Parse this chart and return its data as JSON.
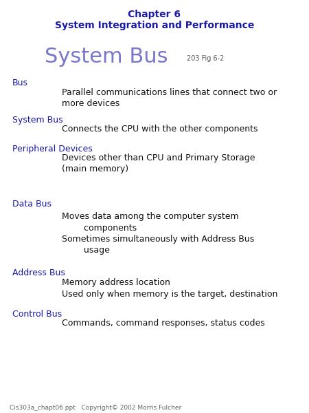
{
  "bg_color": "#ffffff",
  "header_line1": "Chapter 6",
  "header_line2": "System Integration and Performance",
  "header_color": "#1a1aaa",
  "title_main": "System Bus",
  "title_ref": "203 Fig 6-2",
  "title_color": "#7777cc",
  "title_ref_color": "#555555",
  "label_color": "#1a1aaa",
  "body_color": "#111111",
  "footer": "Cis303a_chapt06.ppt   Copyright© 2002 Morris Fulcher",
  "footer_color": "#666666",
  "items": [
    {
      "label": "Bus",
      "body": "Parallel communications lines that connect two or\nmore devices",
      "body_align": "left"
    },
    {
      "label": "System Bus",
      "body": "Connects the CPU with the other components",
      "body_align": "left"
    },
    {
      "label": "Peripheral Devices",
      "body": "Devices other than CPU and Primary Storage\n(main memory)",
      "body_align": "left"
    },
    {
      "label": "Data Bus",
      "body": "Moves data among the computer system\n        components\nSometimes simultaneously with Address Bus\n        usage",
      "body_align": "left"
    },
    {
      "label": "Address Bus",
      "body": "Memory address location\nUsed only when memory is the target, destination",
      "body_align": "left"
    },
    {
      "label": "Control Bus",
      "body": "Commands, command responses, status codes",
      "body_align": "left"
    }
  ]
}
